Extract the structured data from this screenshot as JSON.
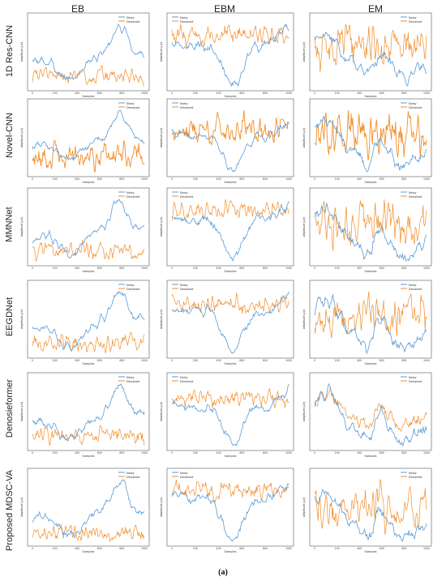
{
  "figure": {
    "columns": [
      "EB",
      "EBM",
      "EM"
    ],
    "rows": [
      "1D Res-CNN",
      "Novel-CNN",
      "MMNNet",
      "EEGDNet",
      "Denosieformer",
      "Proposed MDSC-VA"
    ],
    "caption": "(a)",
    "colors": {
      "noisy": "#5b9bd5",
      "denoised": "#f28e2b",
      "axis": "#555555"
    }
  },
  "chart_data": [
    {
      "type": "line",
      "grid_layout": "6 rows x 3 columns of small line plots",
      "x_range": [
        0,
        1000
      ],
      "xlabel": "Samples",
      "ylabel": "Amplitude (μV)",
      "legend": [
        "Noisy",
        "Denoised"
      ],
      "legend_placement": "top-right",
      "xticks": [
        0,
        200,
        400,
        600,
        800,
        1000
      ],
      "panels": [
        {
          "row": "1D Res-CNN",
          "column": "EB"
        },
        {
          "row": "1D Res-CNN",
          "column": "EBM"
        },
        {
          "row": "1D Res-CNN",
          "column": "EM"
        },
        {
          "row": "Novel-CNN",
          "column": "EB"
        },
        {
          "row": "Novel-CNN",
          "column": "EBM"
        },
        {
          "row": "Novel-CNN",
          "column": "EM"
        },
        {
          "row": "MMNNet",
          "column": "EB"
        },
        {
          "row": "MMNNet",
          "column": "EBM"
        },
        {
          "row": "MMNNet",
          "column": "EM"
        },
        {
          "row": "EEGDNet",
          "column": "EB"
        },
        {
          "row": "EEGDNet",
          "column": "EBM"
        },
        {
          "row": "EEGDNet",
          "column": "EM"
        },
        {
          "row": "Denosieformer",
          "column": "EB"
        },
        {
          "row": "Denosieformer",
          "column": "EBM"
        },
        {
          "row": "Denosieformer",
          "column": "EM"
        },
        {
          "row": "Proposed MDSC-VA",
          "column": "EB"
        },
        {
          "row": "Proposed MDSC-VA",
          "column": "EBM"
        },
        {
          "row": "Proposed MDSC-VA",
          "column": "EM"
        }
      ]
    }
  ]
}
